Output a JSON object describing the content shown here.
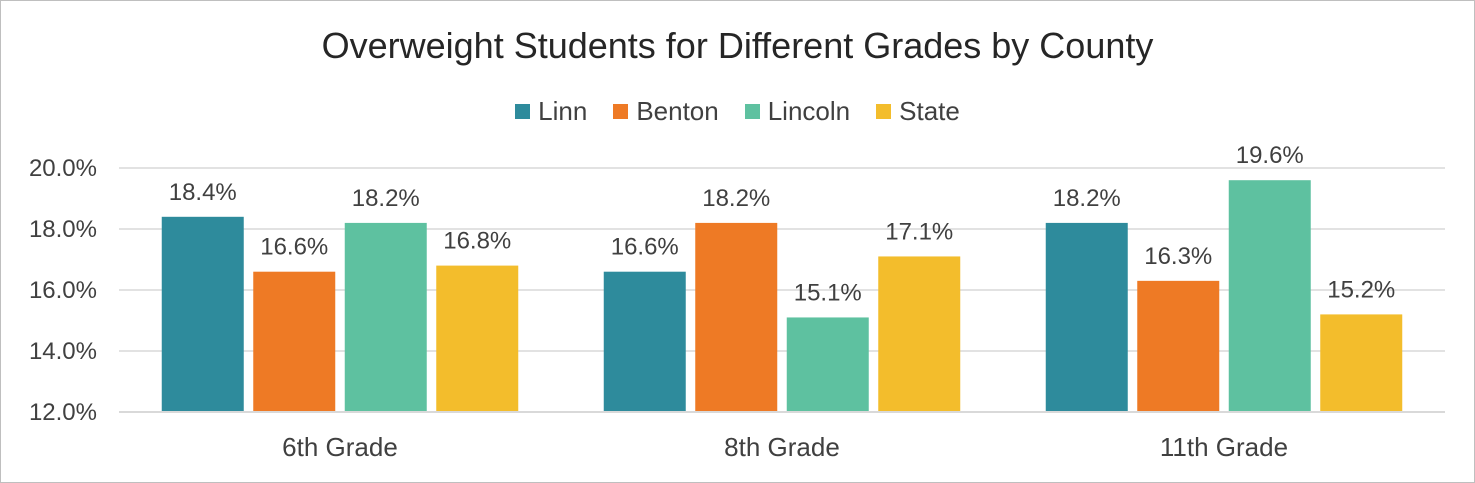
{
  "chart_data": {
    "type": "bar",
    "title": "Overweight Students for Different Grades by County",
    "categories": [
      "6th Grade",
      "8th Grade",
      "11th Grade"
    ],
    "series": [
      {
        "name": "Linn",
        "color": "#2e8b9c",
        "values": [
          18.4,
          16.6,
          18.2
        ],
        "labels": [
          "18.4%",
          "16.6%",
          "18.2%"
        ]
      },
      {
        "name": "Benton",
        "color": "#ee7a25",
        "values": [
          16.6,
          18.2,
          16.3
        ],
        "labels": [
          "16.6%",
          "18.2%",
          "16.3%"
        ]
      },
      {
        "name": "Lincoln",
        "color": "#5ec1a0",
        "values": [
          18.2,
          15.1,
          19.6
        ],
        "labels": [
          "18.2%",
          "15.1%",
          "19.6%"
        ]
      },
      {
        "name": "State",
        "color": "#f3bd2c",
        "values": [
          16.8,
          17.1,
          15.2
        ],
        "labels": [
          "16.8%",
          "17.1%",
          "15.2%"
        ]
      }
    ],
    "ylim": [
      12.0,
      20.0
    ],
    "yticks": [
      {
        "value": 20.0,
        "label": "20.0%"
      },
      {
        "value": 18.0,
        "label": "18.0%"
      },
      {
        "value": 16.0,
        "label": "16.0%"
      },
      {
        "value": 14.0,
        "label": "14.0%"
      },
      {
        "value": 12.0,
        "label": "12.0%"
      }
    ],
    "grid": true,
    "legend_position": "top",
    "xlabel": "",
    "ylabel": ""
  }
}
